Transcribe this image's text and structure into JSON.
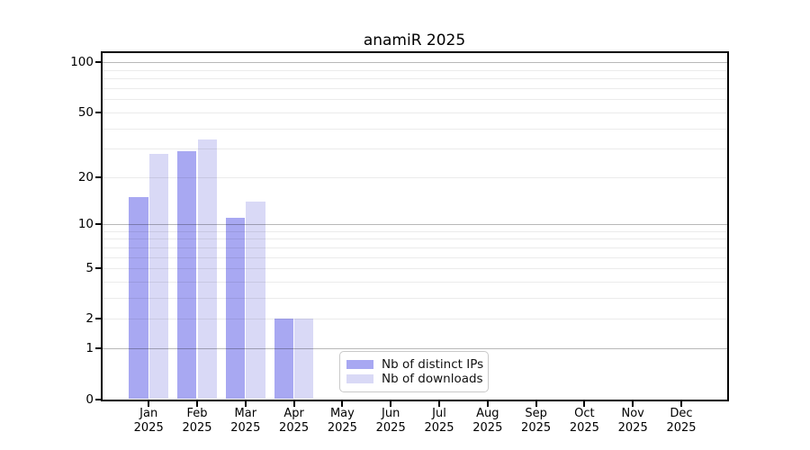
{
  "page": {
    "background": "#ffffff"
  },
  "chart_data": {
    "type": "bar",
    "title": "anamiR 2025",
    "categories": [
      "Jan",
      "Feb",
      "Mar",
      "Apr",
      "May",
      "Jun",
      "Jul",
      "Aug",
      "Sep",
      "Oct",
      "Nov",
      "Dec"
    ],
    "category_year": "2025",
    "series": [
      {
        "name": "Nb of distinct IPs",
        "color": "#a8a8f2",
        "values": [
          15,
          29,
          11,
          2,
          0,
          0,
          0,
          0,
          0,
          0,
          0,
          0
        ]
      },
      {
        "name": "Nb of downloads",
        "color": "#d9d9f6",
        "values": [
          28,
          34,
          14,
          2,
          0,
          0,
          0,
          0,
          0,
          0,
          0,
          0
        ]
      }
    ],
    "xlabel": "",
    "ylabel": "",
    "y_scale": "log1p",
    "ylim": [
      0,
      115
    ],
    "y_ticks": [
      0,
      1,
      2,
      5,
      10,
      20,
      50,
      100
    ],
    "major_grid_values": [
      1,
      10,
      100
    ],
    "minor_grid_values": [
      2,
      3,
      4,
      5,
      6,
      7,
      8,
      9,
      20,
      30,
      40,
      50,
      60,
      70,
      80,
      90
    ],
    "grid": true,
    "legend_position": "bottom-center",
    "colors": {
      "spine": "#000000",
      "text": "#000000",
      "major_grid": "rgba(0,0,0,0.28)",
      "minor_grid": "rgba(0,0,0,0.08)",
      "legend_border": "#c9c9c9",
      "legend_background": "#ffffff"
    }
  }
}
